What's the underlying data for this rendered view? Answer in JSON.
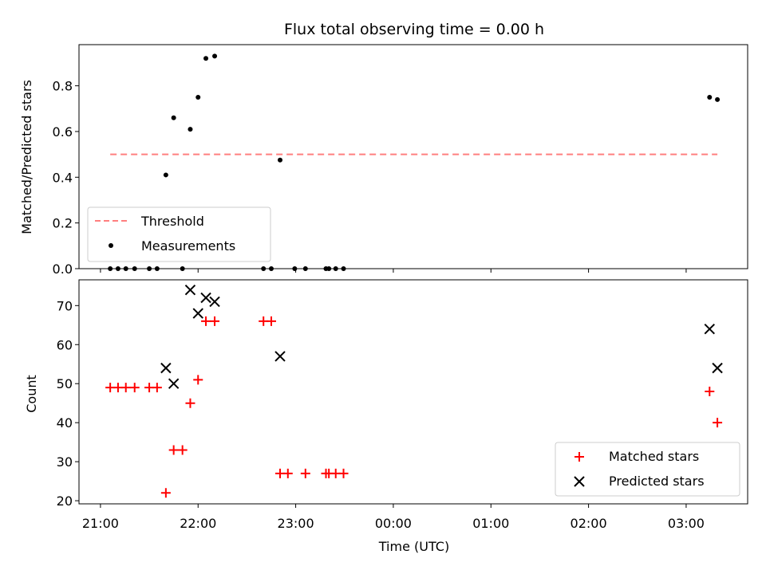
{
  "chart_data": [
    {
      "type": "scatter",
      "title": "Flux total observing time = 0.00 h",
      "xlabel": "",
      "ylabel": "Matched/Predicted stars",
      "ylim": [
        0,
        0.98
      ],
      "yticks": [
        0.0,
        0.2,
        0.4,
        0.6,
        0.8
      ],
      "ytick_labels": [
        "0.0",
        "0.2",
        "0.4",
        "0.6",
        "0.8"
      ],
      "xlim_hours": [
        20.78,
        27.63
      ],
      "grid": false,
      "legend_position": "lower-left",
      "threshold": {
        "name": "Threshold",
        "y": 0.5,
        "x_start": 21.1,
        "x_end": 27.32,
        "color": "#ff7f7f",
        "style": "dashed"
      },
      "series": [
        {
          "name": "Measurements",
          "color": "#000000",
          "marker": "dot",
          "x": [
            21.1,
            21.18,
            21.26,
            21.35,
            21.5,
            21.58,
            21.67,
            21.75,
            21.84,
            21.92,
            22.0,
            22.08,
            22.17,
            22.67,
            22.75,
            22.84,
            22.99,
            23.1,
            23.31,
            23.34,
            23.41,
            23.49
          ],
          "y": [
            0,
            0,
            0,
            0,
            0,
            0,
            0.41,
            0.66,
            0,
            0.61,
            0.75,
            0.92,
            0.93,
            0,
            0,
            0.475,
            0,
            0,
            0,
            0,
            0,
            0
          ]
        },
        {
          "name": "",
          "color": "#000000",
          "marker": "dot",
          "x": [
            27.24,
            27.32
          ],
          "y": [
            0.75,
            0.74
          ]
        }
      ]
    },
    {
      "type": "scatter",
      "title": "",
      "xlabel": "Time (UTC)",
      "ylabel": "Count",
      "ylim": [
        19.2,
        76.6
      ],
      "yticks": [
        20,
        30,
        40,
        50,
        60,
        70
      ],
      "ytick_labels": [
        "20",
        "30",
        "40",
        "50",
        "60",
        "70"
      ],
      "xlim_hours": [
        20.78,
        27.63
      ],
      "xticks_hours": [
        21,
        22,
        23,
        24,
        25,
        26,
        27
      ],
      "xtick_labels": [
        "21:00",
        "22:00",
        "23:00",
        "00:00",
        "01:00",
        "02:00",
        "03:00"
      ],
      "grid": false,
      "legend_position": "lower-right",
      "series": [
        {
          "name": "Matched stars",
          "color": "#ff0000",
          "marker": "plus",
          "x": [
            21.1,
            21.18,
            21.26,
            21.35,
            21.5,
            21.58,
            21.67,
            21.75,
            21.84,
            21.92,
            22.0,
            22.08,
            22.17,
            22.67,
            22.75,
            22.84,
            22.92,
            23.1,
            23.31,
            23.34,
            23.41,
            23.49,
            27.24,
            27.32
          ],
          "y": [
            49,
            49,
            49,
            49,
            49,
            49,
            22,
            33,
            33,
            45,
            51,
            66,
            66,
            66,
            66,
            27,
            27,
            27,
            27,
            27,
            27,
            27,
            48,
            40
          ]
        },
        {
          "name": "Predicted stars",
          "color": "#000000",
          "marker": "x",
          "x": [
            21.67,
            21.75,
            21.92,
            22.0,
            22.08,
            22.17,
            22.84,
            27.24,
            27.32
          ],
          "y": [
            54,
            50,
            74,
            68,
            72,
            71,
            57,
            64,
            54
          ]
        }
      ]
    }
  ]
}
